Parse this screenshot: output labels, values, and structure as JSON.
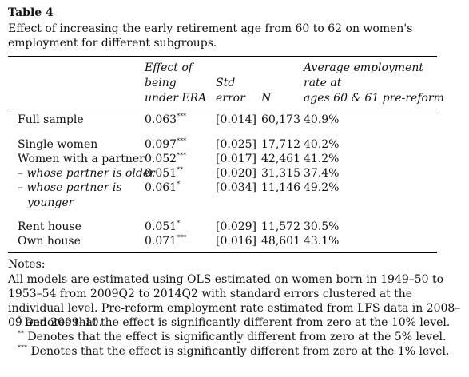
{
  "table": {
    "title": "Table 4",
    "caption": "Effect of increasing the early retirement age from 60 to 62 on women's employment for different subgroups.",
    "headers": {
      "effect": [
        "Effect of",
        "being",
        "under ERA"
      ],
      "std": [
        "Std",
        "error"
      ],
      "n": "N",
      "avg": [
        "Average employment",
        "rate at",
        "ages 60 & 61 pre-reform"
      ]
    },
    "rows": [
      {
        "label": "Full sample",
        "effect": "0.063",
        "sig": "***",
        "se": "[0.014]",
        "n": "60,173",
        "rate": "40.9%"
      },
      {
        "label": "Single women",
        "effect": "0.097",
        "sig": "***",
        "se": "[0.025]",
        "n": "17,712",
        "rate": "40.2%"
      },
      {
        "label": "Women with a partner",
        "effect": "0.052",
        "sig": "***",
        "se": "[0.017]",
        "n": "42,461",
        "rate": "41.2%"
      },
      {
        "label": "– whose partner is older",
        "effect": "0.051",
        "sig": "**",
        "se": "[0.020]",
        "n": "31,315",
        "rate": "37.4%"
      },
      {
        "label": "– whose partner is",
        "label2": "younger",
        "effect": "0.061",
        "sig": "*",
        "se": "[0.034]",
        "n": "11,146",
        "rate": "49.2%"
      },
      {
        "label": "Rent house",
        "effect": "0.051",
        "sig": "*",
        "se": "[0.029]",
        "n": "11,572",
        "rate": "30.5%"
      },
      {
        "label": "Own house",
        "effect": "0.071",
        "sig": "***",
        "se": "[0.016]",
        "n": "48,601",
        "rate": "43.1%"
      }
    ],
    "notes": {
      "heading": "Notes:",
      "body": "All models are estimated using OLS estimated on women born in 1949–50 to 1953–54 from 2009Q2 to 2014Q2 with standard errors clustered at the individual level. Pre-reform employment rate estimated from LFS data in 2008–09 and 2009–10.",
      "sig": [
        {
          "mark": "*",
          "text": "Denotes that the effect is significantly different from zero at the 10% level."
        },
        {
          "mark": "**",
          "text": "Denotes that the effect is significantly different from zero at the 5% level."
        },
        {
          "mark": "***",
          "text": "Denotes that the effect is significantly different from zero at the 1% level."
        }
      ]
    }
  }
}
